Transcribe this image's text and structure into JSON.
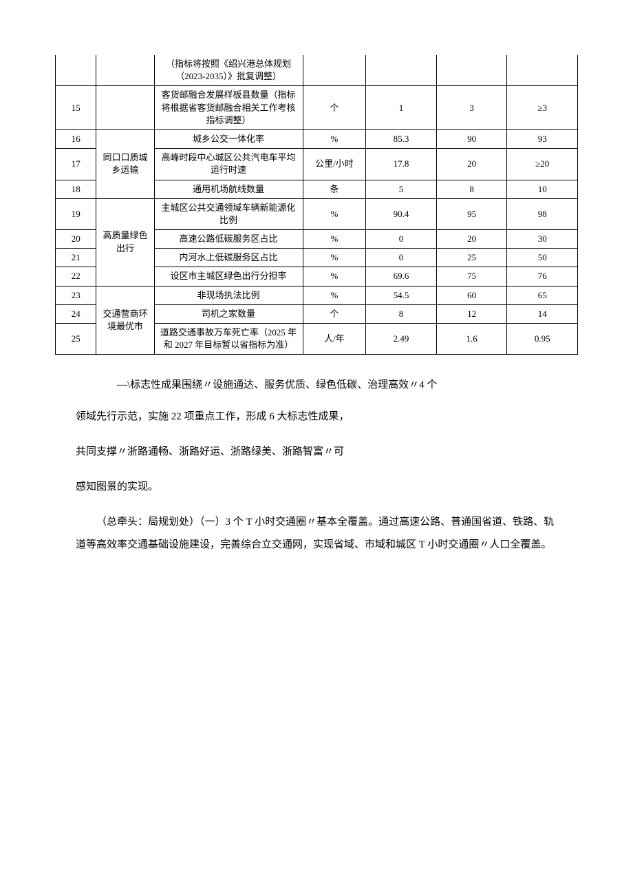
{
  "table": {
    "rows": [
      {
        "num": "",
        "category": "",
        "indicator": "（指标将按照《绍兴港总体规划（2023-2035）》批复调整）",
        "unit": "",
        "v1": "",
        "v2": "",
        "v3": "",
        "noTop": true
      },
      {
        "num": "15",
        "category": "",
        "indicator": "客货邮融合发展样板县数量（指标将根据省客货邮融合相关工作考核指标调整）",
        "unit": "个",
        "v1": "1",
        "v2": "3",
        "v3": "≥3"
      },
      {
        "num": "16",
        "category": "同口口质城乡运输",
        "categoryRowspan": 3,
        "indicator": "城乡公交一体化率",
        "unit": "%",
        "v1": "85.3",
        "v2": "90",
        "v3": "93"
      },
      {
        "num": "17",
        "indicator": "高峰时段中心城区公共汽电车平均运行时速",
        "unit": "公里/小时",
        "v1": "17.8",
        "v2": "20",
        "v3": "≥20"
      },
      {
        "num": "18",
        "indicator": "通用机场航线数量",
        "unit": "条",
        "v1": "5",
        "v2": "8",
        "v3": "10"
      },
      {
        "num": "19",
        "category": "高质量绿色出行",
        "categoryRowspan": 4,
        "indicator": "主城区公共交通领域车辆新能源化比例",
        "unit": "%",
        "v1": "90.4",
        "v2": "95",
        "v3": "98"
      },
      {
        "num": "20",
        "indicator": "高速公路低碳服务区占比",
        "unit": "%",
        "v1": "0",
        "v2": "20",
        "v3": "30"
      },
      {
        "num": "21",
        "indicator": "内河水上低碳服务区占比",
        "unit": "%",
        "v1": "0",
        "v2": "25",
        "v3": "50"
      },
      {
        "num": "22",
        "indicator": "设区市主城区绿色出行分担率",
        "unit": "%",
        "v1": "69.6",
        "v2": "75",
        "v3": "76"
      },
      {
        "num": "23",
        "category": "交通营商环境最优市",
        "categoryRowspan": 3,
        "indicator": "非现场执法比例",
        "unit": "%",
        "v1": "54.5",
        "v2": "60",
        "v3": "65"
      },
      {
        "num": "24",
        "indicator": "司机之家数量",
        "unit": "个",
        "v1": "8",
        "v2": "12",
        "v3": "14"
      },
      {
        "num": "25",
        "indicator": "道路交通事故万车死亡率（2025 年和 2027 年目标暂以省指标为准）",
        "unit": "人/年",
        "v1": "2.49",
        "v2": "1.6",
        "v3": "0.95"
      }
    ]
  },
  "text": {
    "bq1": "—\\标志性成果围绕〃设施通达、服务优质、绿色低碳、治理高效〃4 个",
    "p1": "领域先行示范，实施 22 项重点工作，形成 6 大标志性成果，",
    "p2": "共同支撑〃浙路通畅、浙路好运、浙路绿美、浙路智富〃可",
    "p3": "感知图景的实现。",
    "p4": "（总牵头：局规划处）（一）3 个 T 小时交通圈〃基本全覆盖。通过高速公路、普通国省道、铁路、轨道等高效率交通基础设施建设，完善综合立交通网，实现省域、市域和城区 T 小时交通圈〃人口全覆盖。"
  }
}
